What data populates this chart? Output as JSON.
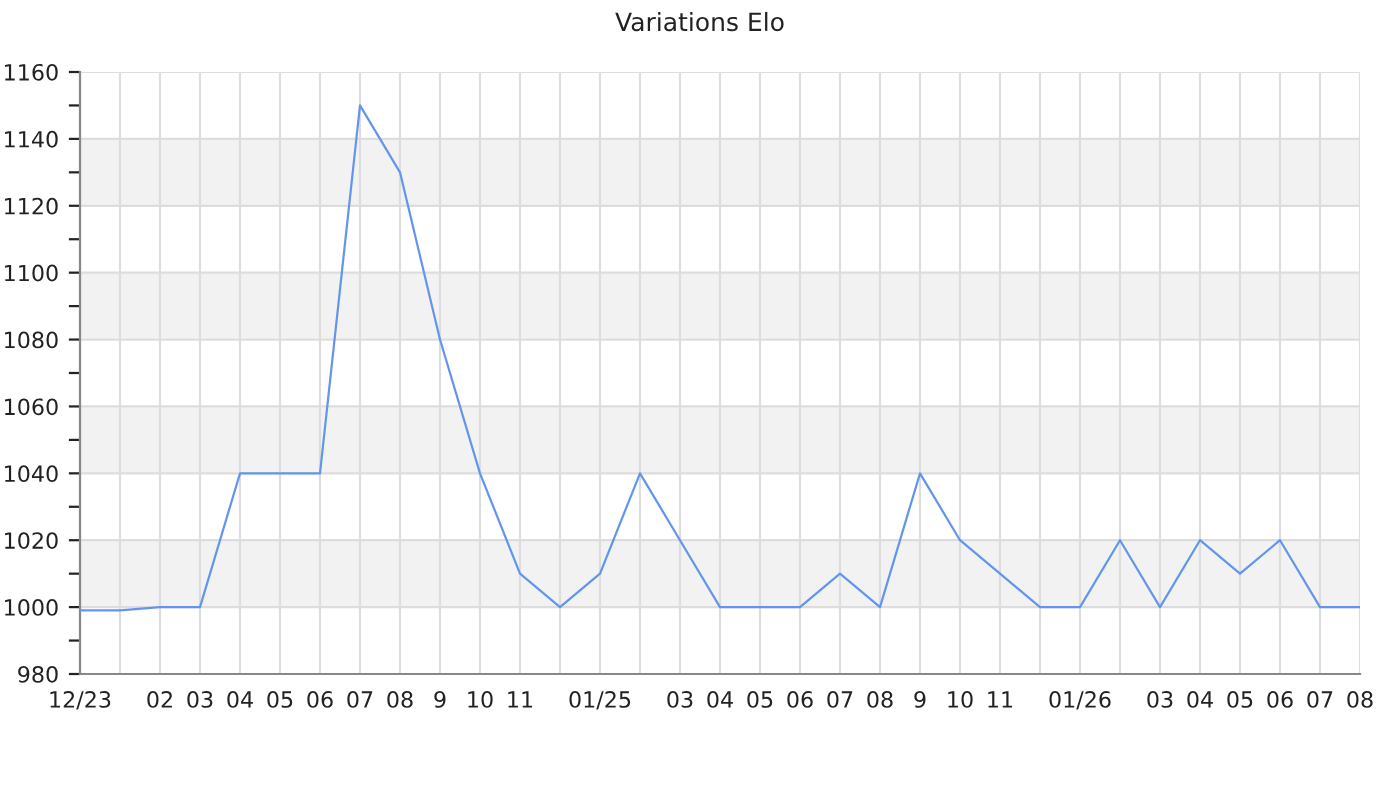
{
  "chart_data": {
    "type": "line",
    "title": "Variations Elo",
    "categories": [
      "12/23",
      null,
      "02",
      "03",
      "04",
      "05",
      "06",
      "07",
      "08",
      "9",
      "10",
      "11",
      null,
      "01/25",
      null,
      "03",
      "04",
      "05",
      "06",
      "07",
      "08",
      "9",
      "10",
      "11",
      null,
      "01/26",
      null,
      "03",
      "04",
      "05",
      "06",
      "07",
      "08"
    ],
    "series": [
      {
        "color": "#6495ed",
        "values": [
          999,
          999,
          1000,
          1000,
          1040,
          1040,
          1040,
          1150,
          1130,
          1080,
          1040,
          1010,
          1000,
          1010,
          1040,
          1020,
          1000,
          1000,
          1000,
          1010,
          1000,
          1040,
          1020,
          1010,
          1000,
          1000,
          1020,
          1000,
          1020,
          1010,
          1020,
          1000,
          1000
        ]
      }
    ],
    "ylim": [
      980,
      1160
    ],
    "yticks": [
      980,
      {
        "value": 990,
        "label": null
      },
      1000,
      {
        "value": 1010,
        "label": null
      },
      1020,
      {
        "value": 1030,
        "label": null
      },
      1040,
      {
        "value": 1050,
        "label": null
      },
      1060,
      {
        "value": 1070,
        "label": null
      },
      1080,
      {
        "value": 1090,
        "label": null
      },
      1100,
      {
        "value": 1110,
        "label": null
      },
      1120,
      {
        "value": 1130,
        "label": null
      },
      1140,
      {
        "value": 1150,
        "label": null
      },
      1160
    ],
    "bands": [
      {
        "axis": "y",
        "from": 1000,
        "to": 1020,
        "color": "#f2f2f2"
      },
      {
        "axis": "y",
        "from": 1040,
        "to": 1060,
        "color": "#f2f2f2"
      },
      {
        "axis": "y",
        "from": 1080,
        "to": 1100,
        "color": "#f2f2f2"
      },
      {
        "axis": "y",
        "from": 1120,
        "to": 1140,
        "color": "#f2f2f2"
      }
    ],
    "grid": true,
    "marker": "none",
    "line_style": "solid"
  }
}
